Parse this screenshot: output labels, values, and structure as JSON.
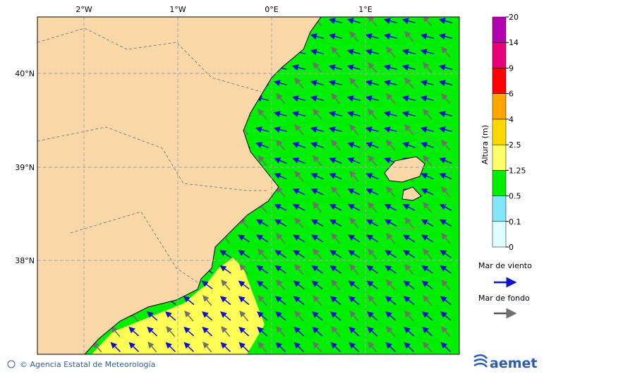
{
  "map": {
    "lon_labels": [
      "2°W",
      "1°W",
      "0°E",
      "1°E"
    ],
    "lat_labels": [
      "40°N",
      "39°N",
      "38°N"
    ]
  },
  "colorbar": {
    "title": "Altura (m)",
    "ticks": [
      0,
      0.1,
      0.5,
      1.25,
      2.5,
      4,
      6,
      9,
      14,
      20
    ],
    "colors": [
      "#e0ffff",
      "#80e8f8",
      "#00ee00",
      "#ffff66",
      "#ffd700",
      "#ffa500",
      "#ff0000",
      "#e6007a",
      "#b000b0"
    ]
  },
  "legend": {
    "wind_sea": "Mar de viento",
    "swell": "Mar de fondo"
  },
  "footer": {
    "credit": "© Agencia Estatal de Meteorología",
    "logo": "aemet"
  }
}
